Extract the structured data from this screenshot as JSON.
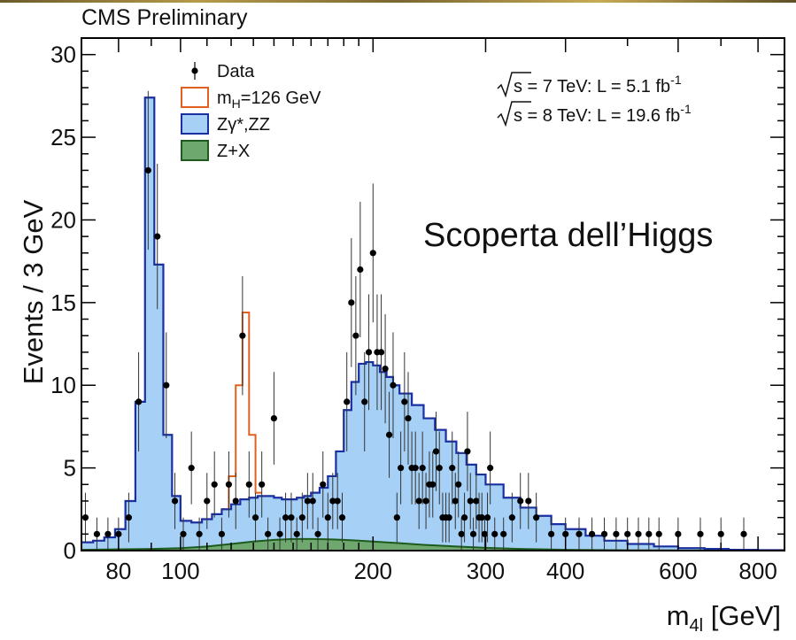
{
  "header": {
    "experiment": "CMS Preliminary"
  },
  "overlay_text": "Scoperta dell’Higgs",
  "lumi": [
    {
      "sqrt_s": "s",
      "text": " = 7 TeV: L = 5.1 fb",
      "sup": "-1"
    },
    {
      "sqrt_s": "s",
      "text": " = 8 TeV: L = 19.6 fb",
      "sup": "-1"
    }
  ],
  "chart_data": {
    "type": "line",
    "ylabel": "Events / 3 GeV",
    "xlabel_main": "m",
    "xlabel_sub": "4l",
    "xlabel_unit": " [GeV]",
    "xscale": "log",
    "xlim": [
      70,
      880
    ],
    "ylim": [
      0,
      31
    ],
    "x_ticks": [
      80,
      100,
      200,
      300,
      400,
      600,
      800
    ],
    "y_ticks": [
      0,
      5,
      10,
      15,
      20,
      25,
      30
    ],
    "legend": {
      "placement": "top-left",
      "items": [
        {
          "label": "Data",
          "style": "marker"
        },
        {
          "label_main": "m",
          "label_sub": "H",
          "label_rest": "=126 GeV",
          "style": "line",
          "color": "#e06020"
        },
        {
          "label": "Zγ*,ZZ",
          "style": "fill",
          "fill": "#a6d0f6",
          "stroke": "#1a2fa0"
        },
        {
          "label": "Z+X",
          "style": "fill",
          "fill": "#6fa86f",
          "stroke": "#1d5a1d"
        }
      ]
    },
    "colors": {
      "zz_fill": "#a6d0f6",
      "zz_line": "#1a2fa0",
      "signal_line": "#e06020",
      "zx_fill": "#6fa86f",
      "zx_line": "#1d5a1d",
      "data": "#000000"
    },
    "series": [
      {
        "name": "Zγ*,ZZ",
        "x": [
          70,
          73,
          76,
          79,
          82,
          85,
          88,
          91,
          94,
          97,
          100,
          104,
          108,
          112,
          116,
          120,
          124,
          128,
          132,
          136,
          140,
          144,
          148,
          152,
          156,
          160,
          165,
          170,
          175,
          180,
          185,
          190,
          195,
          200,
          205,
          210,
          215,
          220,
          230,
          240,
          250,
          260,
          270,
          280,
          290,
          300,
          320,
          340,
          360,
          380,
          400,
          430,
          460,
          500,
          550,
          600,
          660,
          720,
          800,
          880
        ],
        "values": [
          0.5,
          0.6,
          0.8,
          1.3,
          3,
          9,
          27.4,
          17.3,
          7,
          3.3,
          1.8,
          1.7,
          1.9,
          2.2,
          2.5,
          2.8,
          3.1,
          3.2,
          3.3,
          3.3,
          3.2,
          3.1,
          3.1,
          3.2,
          3.3,
          3.5,
          3.8,
          4.5,
          6,
          8.5,
          10.2,
          11.3,
          11.4,
          11.2,
          10.8,
          10.5,
          10,
          9.5,
          8.8,
          8,
          7.3,
          6.6,
          5.9,
          5.2,
          4.6,
          4,
          3.2,
          2.6,
          2.1,
          1.6,
          1.3,
          0.9,
          0.6,
          0.4,
          0.25,
          0.15,
          0.1,
          0.05,
          0.03,
          0.02
        ]
      },
      {
        "name": "m_H=126 GeV",
        "x": [
          116,
          119,
          122,
          125,
          128,
          131,
          134
        ],
        "values": [
          2.5,
          4.5,
          10,
          14.4,
          7,
          3.5,
          3.3
        ]
      },
      {
        "name": "Z+X",
        "x": [
          70,
          90,
          100,
          110,
          120,
          130,
          140,
          150,
          160,
          170,
          180,
          190,
          200,
          220,
          240,
          260,
          280,
          300,
          340,
          400,
          500,
          600,
          700,
          880
        ],
        "values": [
          0.05,
          0.1,
          0.15,
          0.25,
          0.4,
          0.55,
          0.65,
          0.7,
          0.7,
          0.68,
          0.65,
          0.6,
          0.55,
          0.45,
          0.35,
          0.28,
          0.22,
          0.17,
          0.1,
          0.05,
          0.02,
          0.01,
          0.005,
          0
        ]
      },
      {
        "name": "Data",
        "x": [
          71,
          74,
          77,
          80,
          83,
          86,
          89,
          92,
          95,
          98,
          101,
          104,
          107,
          110,
          113,
          116,
          119,
          122,
          125,
          128,
          131,
          134,
          137,
          140,
          143,
          146,
          149,
          152,
          155,
          158,
          161,
          164,
          167,
          170,
          173,
          176,
          179,
          182,
          185,
          188,
          191,
          194,
          197,
          200,
          203,
          206,
          209,
          212,
          215,
          218,
          221,
          224,
          227,
          230,
          233,
          236,
          239,
          242,
          245,
          248,
          251,
          254,
          257,
          260,
          263,
          266,
          269,
          272,
          275,
          278,
          281,
          284,
          287,
          290,
          293,
          296,
          299,
          302,
          305,
          310,
          320,
          330,
          340,
          350,
          360,
          380,
          400,
          420,
          440,
          460,
          480,
          500,
          520,
          540,
          560,
          600,
          650,
          700,
          760
        ],
        "values": [
          2,
          1,
          1,
          1,
          2,
          9,
          23,
          19,
          10,
          3,
          1,
          5,
          1,
          3,
          4,
          1,
          4,
          3,
          13,
          4,
          2,
          4,
          1,
          8,
          1,
          2,
          2,
          1,
          2,
          3,
          3,
          1,
          4,
          2,
          3,
          3,
          2,
          9,
          15,
          13,
          17,
          9,
          12,
          18,
          12,
          12,
          11,
          7,
          10,
          2,
          5,
          9,
          8,
          5,
          5,
          3,
          5,
          3,
          4,
          4,
          6,
          5,
          2,
          2,
          2,
          5,
          3,
          4,
          1,
          2,
          6,
          3,
          1,
          3,
          2,
          2,
          1,
          2,
          5,
          1,
          1,
          2,
          3,
          3,
          2,
          1,
          1,
          1,
          1,
          1,
          1,
          1,
          1,
          1,
          1,
          1,
          1,
          1,
          1
        ],
        "err": [
          1.5,
          1,
          1,
          1,
          1.5,
          3,
          4.8,
          4.4,
          3.2,
          1.7,
          1,
          2.2,
          1,
          1.7,
          2,
          1,
          2,
          1.7,
          3.6,
          2,
          1.5,
          2,
          1,
          2.8,
          1,
          1.5,
          1.5,
          1,
          1.5,
          1.7,
          1.7,
          1,
          2,
          1.5,
          1.7,
          1.7,
          1.5,
          3,
          3.9,
          3.6,
          4.1,
          3,
          3.5,
          4.2,
          3.5,
          3.5,
          3.3,
          2.6,
          3.2,
          1.5,
          2.2,
          3,
          2.8,
          2.2,
          2.2,
          1.7,
          2.2,
          1.7,
          2,
          2,
          2.4,
          2.2,
          1.5,
          1.5,
          1.5,
          2.2,
          1.7,
          2,
          1,
          1.5,
          2.4,
          1.7,
          1,
          1.7,
          1.5,
          1.5,
          1,
          1.5,
          2.2,
          1,
          1,
          1.5,
          1.7,
          1.7,
          1.5,
          1,
          1,
          1,
          1,
          1,
          1,
          1,
          1,
          1,
          1,
          1,
          1,
          1,
          1
        ]
      }
    ]
  }
}
